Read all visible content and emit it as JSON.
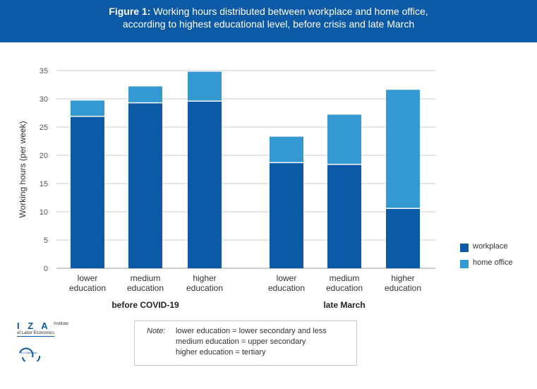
{
  "header": {
    "figure_label": "Figure 1:",
    "title_line1": "Working hours distributed between workplace and home office,",
    "title_line2": "according to highest educational level, before crisis and late March"
  },
  "chart_data": {
    "type": "bar",
    "stacked": true,
    "ylabel": "Working hours (per week)",
    "ylim": [
      0,
      35
    ],
    "yticks": [
      0,
      5,
      10,
      15,
      20,
      25,
      30,
      35
    ],
    "grid": true,
    "legend_position": "right",
    "groups": [
      {
        "label": "before COVID-19",
        "categories": [
          [
            "lower",
            "education"
          ],
          [
            "medium",
            "education"
          ],
          [
            "higher",
            "education"
          ]
        ]
      },
      {
        "label": "late March",
        "categories": [
          [
            "lower",
            "education"
          ],
          [
            "medium",
            "education"
          ],
          [
            "higher",
            "education"
          ]
        ]
      }
    ],
    "series": [
      {
        "name": "workplace",
        "color": "#0c5aa6",
        "values": [
          26.9,
          29.3,
          29.6,
          18.7,
          18.4,
          10.6
        ]
      },
      {
        "name": "home office",
        "color": "#3399d0",
        "values": [
          2.8,
          2.9,
          5.2,
          4.6,
          8.8,
          21.0
        ]
      }
    ]
  },
  "legend": {
    "items": [
      {
        "label": "workplace",
        "color": "#0c5aa6"
      },
      {
        "label": "home office",
        "color": "#3399d0"
      }
    ]
  },
  "note": {
    "key": "Note:",
    "lines": [
      "lower education = lower secondary and less",
      "medium education = upper secondary",
      "higher education = tertiary"
    ]
  },
  "logos": {
    "iza_mark": "I Z A",
    "iza_text_line1": "Institute",
    "iza_text_line2": "of Labor Economics",
    "econ_text": "ECONtribute"
  }
}
